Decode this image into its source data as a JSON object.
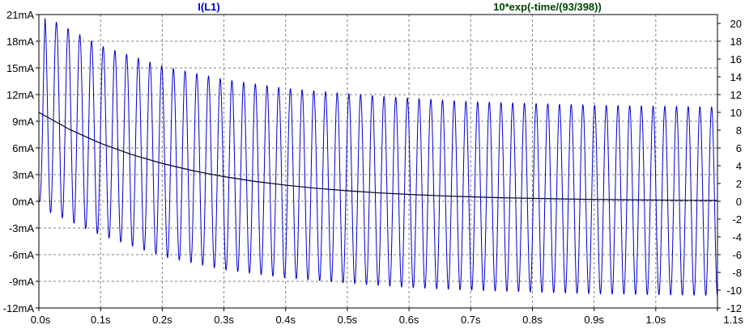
{
  "chart_data": {
    "type": "line",
    "title": "",
    "x_axis": {
      "label": "",
      "range": [
        0,
        1.1
      ],
      "ticks": [
        0.0,
        0.1,
        0.2,
        0.3,
        0.4,
        0.5,
        0.6,
        0.7,
        0.8,
        0.9,
        1.0,
        1.1
      ],
      "tick_labels": [
        "0.0s",
        "0.1s",
        "0.2s",
        "0.3s",
        "0.4s",
        "0.5s",
        "0.6s",
        "0.7s",
        "0.8s",
        "0.9s",
        "1.0s",
        "1.1s"
      ]
    },
    "y_axis_left": {
      "label": "",
      "unit": "mA",
      "range": [
        -12,
        21
      ],
      "ticks": [
        21,
        18,
        15,
        12,
        9,
        6,
        3,
        0,
        -3,
        -6,
        -9,
        -12
      ],
      "tick_labels": [
        "21mA",
        "18mA",
        "15mA",
        "12mA",
        "9mA",
        "6mA",
        "3mA",
        "0mA",
        "-3mA",
        "-6mA",
        "-9mA",
        "-12mA"
      ]
    },
    "y_axis_right": {
      "label": "",
      "range": [
        -12,
        21
      ],
      "ticks": [
        20,
        18,
        16,
        14,
        12,
        10,
        8,
        6,
        4,
        2,
        0,
        -2,
        -4,
        -6,
        -8,
        -10,
        -12
      ],
      "tick_labels": [
        "20",
        "18",
        "16",
        "14",
        "12",
        "10",
        "8",
        "6",
        "4",
        "2",
        "0",
        "-2",
        "-4",
        "-6",
        "-8",
        "-10",
        "-12"
      ]
    },
    "grid": true,
    "grid_style": "dashed",
    "series": [
      {
        "name": "I(L1)",
        "axis": "left",
        "color": "#0000cc",
        "cycles": 58,
        "sample_times": [
          0.0,
          0.01,
          0.1,
          0.2,
          0.3,
          0.4,
          0.5,
          0.6,
          0.7,
          0.8,
          0.9,
          1.0,
          1.1
        ],
        "peak_max": [
          0,
          20.8,
          17.5,
          15.2,
          13.7,
          12.7,
          12.1,
          11.6,
          11.2,
          11.0,
          10.8,
          10.7,
          10.6
        ],
        "peak_min": [
          0,
          -1.0,
          -3.8,
          -6.2,
          -7.7,
          -8.6,
          -9.2,
          -9.7,
          -10.0,
          -10.2,
          -10.4,
          -10.5,
          -10.6
        ]
      },
      {
        "name": "10*exp(-time/(93/398))",
        "axis": "right",
        "color": "#000000",
        "x": [
          0.0,
          0.05,
          0.1,
          0.15,
          0.2,
          0.25,
          0.3,
          0.35,
          0.4,
          0.45,
          0.5,
          0.55,
          0.6,
          0.65,
          0.7,
          0.75,
          0.8,
          0.85,
          0.9,
          0.95,
          1.0,
          1.05,
          1.1
        ],
        "y": [
          10.0,
          8.07,
          6.52,
          5.27,
          4.25,
          3.43,
          2.77,
          2.24,
          1.81,
          1.46,
          1.18,
          0.95,
          0.77,
          0.62,
          0.5,
          0.4,
          0.33,
          0.26,
          0.21,
          0.17,
          0.14,
          0.11,
          0.09
        ]
      }
    ]
  },
  "colors": {
    "background": "#ffffff",
    "grid": "#808080",
    "axis_frame": "#000000",
    "series_1_title": "#0000cc",
    "series_2_title": "#004400"
  }
}
